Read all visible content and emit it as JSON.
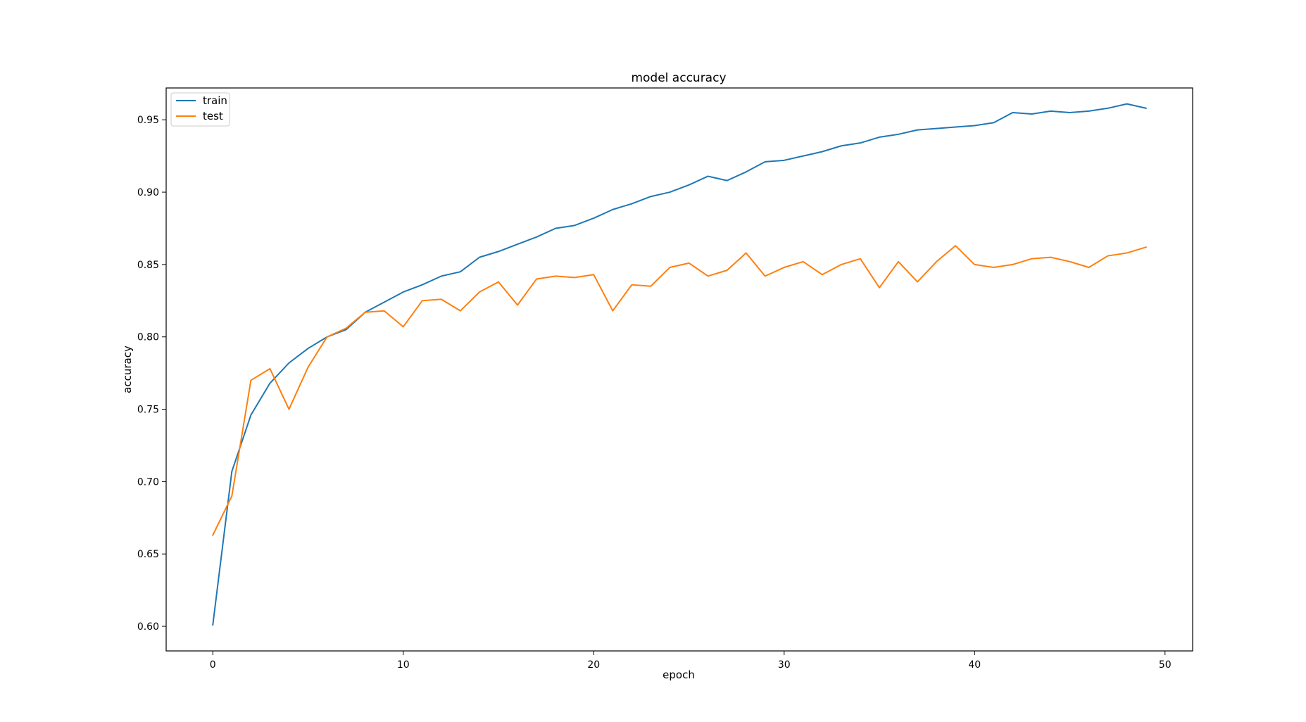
{
  "chart_data": {
    "type": "line",
    "title": "model accuracy",
    "xlabel": "epoch",
    "ylabel": "accuracy",
    "xlim": [
      -2.45,
      51.45
    ],
    "ylim": [
      0.583,
      0.972
    ],
    "xticks": [
      0,
      10,
      20,
      30,
      40,
      50
    ],
    "xtick_labels": [
      "0",
      "10",
      "20",
      "30",
      "40",
      "50"
    ],
    "yticks": [
      0.6,
      0.65,
      0.7,
      0.75,
      0.8,
      0.85,
      0.9,
      0.95
    ],
    "ytick_labels": [
      "0.60",
      "0.65",
      "0.70",
      "0.75",
      "0.80",
      "0.85",
      "0.90",
      "0.95"
    ],
    "grid": false,
    "legend_position": "top-left",
    "x": [
      0,
      1,
      2,
      3,
      4,
      5,
      6,
      7,
      8,
      9,
      10,
      11,
      12,
      13,
      14,
      15,
      16,
      17,
      18,
      19,
      20,
      21,
      22,
      23,
      24,
      25,
      26,
      27,
      28,
      29,
      30,
      31,
      32,
      33,
      34,
      35,
      36,
      37,
      38,
      39,
      40,
      41,
      42,
      43,
      44,
      45,
      46,
      47,
      48,
      49
    ],
    "series": [
      {
        "name": "train",
        "color": "#1f77b4",
        "values": [
          0.601,
          0.707,
          0.746,
          0.768,
          0.782,
          0.792,
          0.8,
          0.805,
          0.817,
          0.824,
          0.831,
          0.836,
          0.842,
          0.845,
          0.855,
          0.859,
          0.864,
          0.869,
          0.875,
          0.877,
          0.882,
          0.888,
          0.892,
          0.897,
          0.9,
          0.905,
          0.911,
          0.908,
          0.914,
          0.921,
          0.922,
          0.925,
          0.928,
          0.932,
          0.934,
          0.938,
          0.94,
          0.943,
          0.944,
          0.945,
          0.946,
          0.948,
          0.955,
          0.954,
          0.956,
          0.955,
          0.956,
          0.958,
          0.961,
          0.958
        ]
      },
      {
        "name": "test",
        "color": "#ff7f0e",
        "values": [
          0.663,
          0.69,
          0.77,
          0.778,
          0.75,
          0.779,
          0.8,
          0.806,
          0.817,
          0.818,
          0.807,
          0.825,
          0.826,
          0.818,
          0.831,
          0.838,
          0.822,
          0.84,
          0.842,
          0.841,
          0.843,
          0.818,
          0.836,
          0.835,
          0.848,
          0.851,
          0.842,
          0.846,
          0.858,
          0.842,
          0.848,
          0.852,
          0.843,
          0.85,
          0.854,
          0.834,
          0.852,
          0.838,
          0.852,
          0.863,
          0.85,
          0.848,
          0.85,
          0.854,
          0.855,
          0.852,
          0.848,
          0.856,
          0.858,
          0.862
        ]
      }
    ]
  }
}
